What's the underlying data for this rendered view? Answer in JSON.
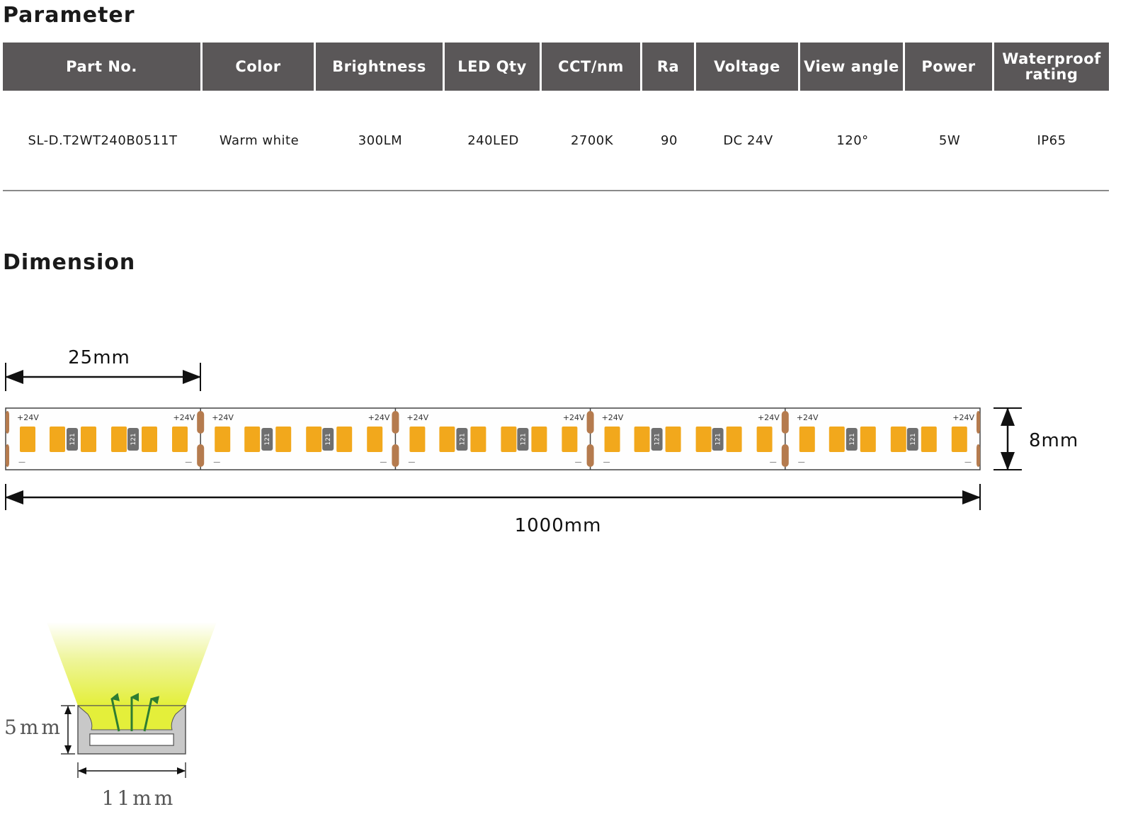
{
  "parameter": {
    "title": "Parameter",
    "columns": [
      "Part No.",
      "Color",
      "Brightness",
      "LED Qty",
      "CCT/nm",
      "Ra",
      "Voltage",
      "View angle",
      "Power",
      "Waterproof rating"
    ],
    "rows": [
      [
        "SL-D.T2WT240B0511T",
        "Warm white",
        "300LM",
        "240LED",
        "2700K",
        "90",
        "DC 24V",
        "120°",
        "5W",
        "IP65"
      ]
    ]
  },
  "dimension": {
    "title": "Dimension",
    "segment_length": "25mm",
    "total_length": "1000mm",
    "strip_width": "8mm",
    "pad_voltage": "+24V",
    "pad_minus": "—",
    "resistor_code": "121",
    "profile_height": "5mm",
    "profile_width": "11mm"
  },
  "colors": {
    "header_bg": "#5a5758",
    "led": "#f2a81c",
    "copper_pad": "#b57b4e",
    "resistor": "#6f6f6f",
    "light_beam": "#e4ef3a",
    "arrow": "#2e7d32",
    "profile": "#c8c8c8"
  }
}
